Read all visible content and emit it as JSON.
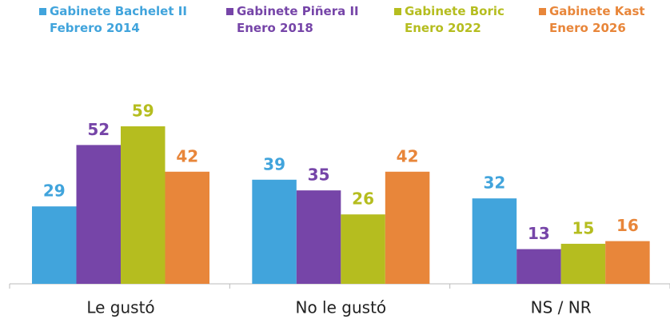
{
  "chart_data": {
    "type": "bar",
    "categories": [
      "Le gustó",
      "No le gustó",
      "NS / NR"
    ],
    "series": [
      {
        "name": "Gabinete Bachelet II\nFebrero 2014",
        "color": "#41a4dc",
        "values": [
          29,
          39,
          32
        ]
      },
      {
        "name": "Gabinete Piñera II\nEnero 2018",
        "color": "#7645a8",
        "values": [
          52,
          35,
          13
        ]
      },
      {
        "name": "Gabinete Boric\nEnero 2022",
        "color": "#b5bd1f",
        "values": [
          59,
          26,
          15
        ]
      },
      {
        "name": "Gabinete Kast\nEnero 2026",
        "color": "#e8863a",
        "values": [
          42,
          42,
          16
        ]
      }
    ]
  }
}
